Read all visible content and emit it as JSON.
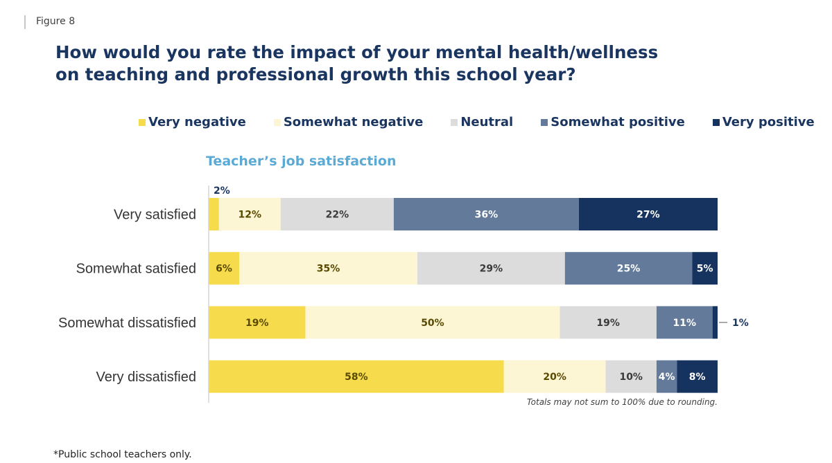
{
  "figure_label": "Figure 8",
  "title_line1": "How would you rate the impact of your mental health/wellness",
  "title_line2": "on teaching and professional growth this school year?",
  "footnote": "Totals may not sum to 100% due to rounding.",
  "note": "*Public school teachers only.",
  "chart_data": {
    "type": "bar",
    "orientation": "horizontal",
    "stacked": true,
    "title": "Teacher’s job satisfaction",
    "categories": [
      "Very satisfied",
      "Somewhat satisfied",
      "Somewhat dissatisfied",
      "Very dissatisfied"
    ],
    "series": [
      {
        "name": "Very negative",
        "color": "#f6dc4c",
        "values": [
          2,
          6,
          19,
          58
        ],
        "labels": [
          "2%",
          "6%",
          "19%",
          "58%"
        ]
      },
      {
        "name": "Somewhat negative",
        "color": "#fdf6d4",
        "values": [
          12,
          35,
          50,
          20
        ],
        "labels": [
          "12%",
          "35%",
          "50%",
          "20%"
        ]
      },
      {
        "name": "Neutral",
        "color": "#dcdcdc",
        "values": [
          22,
          29,
          19,
          10
        ],
        "labels": [
          "22%",
          "29%",
          "19%",
          "10%"
        ]
      },
      {
        "name": "Somewhat positive",
        "color": "#637a9b",
        "values": [
          36,
          25,
          11,
          4
        ],
        "labels": [
          "36%",
          "25%",
          "11%",
          "4%"
        ]
      },
      {
        "name": "Very positive",
        "color": "#16325e",
        "values": [
          27,
          5,
          1,
          8
        ],
        "labels": [
          "27%",
          "5%",
          "1%",
          "8%"
        ]
      }
    ],
    "xlim": [
      0,
      100
    ],
    "legend_position": "top"
  }
}
